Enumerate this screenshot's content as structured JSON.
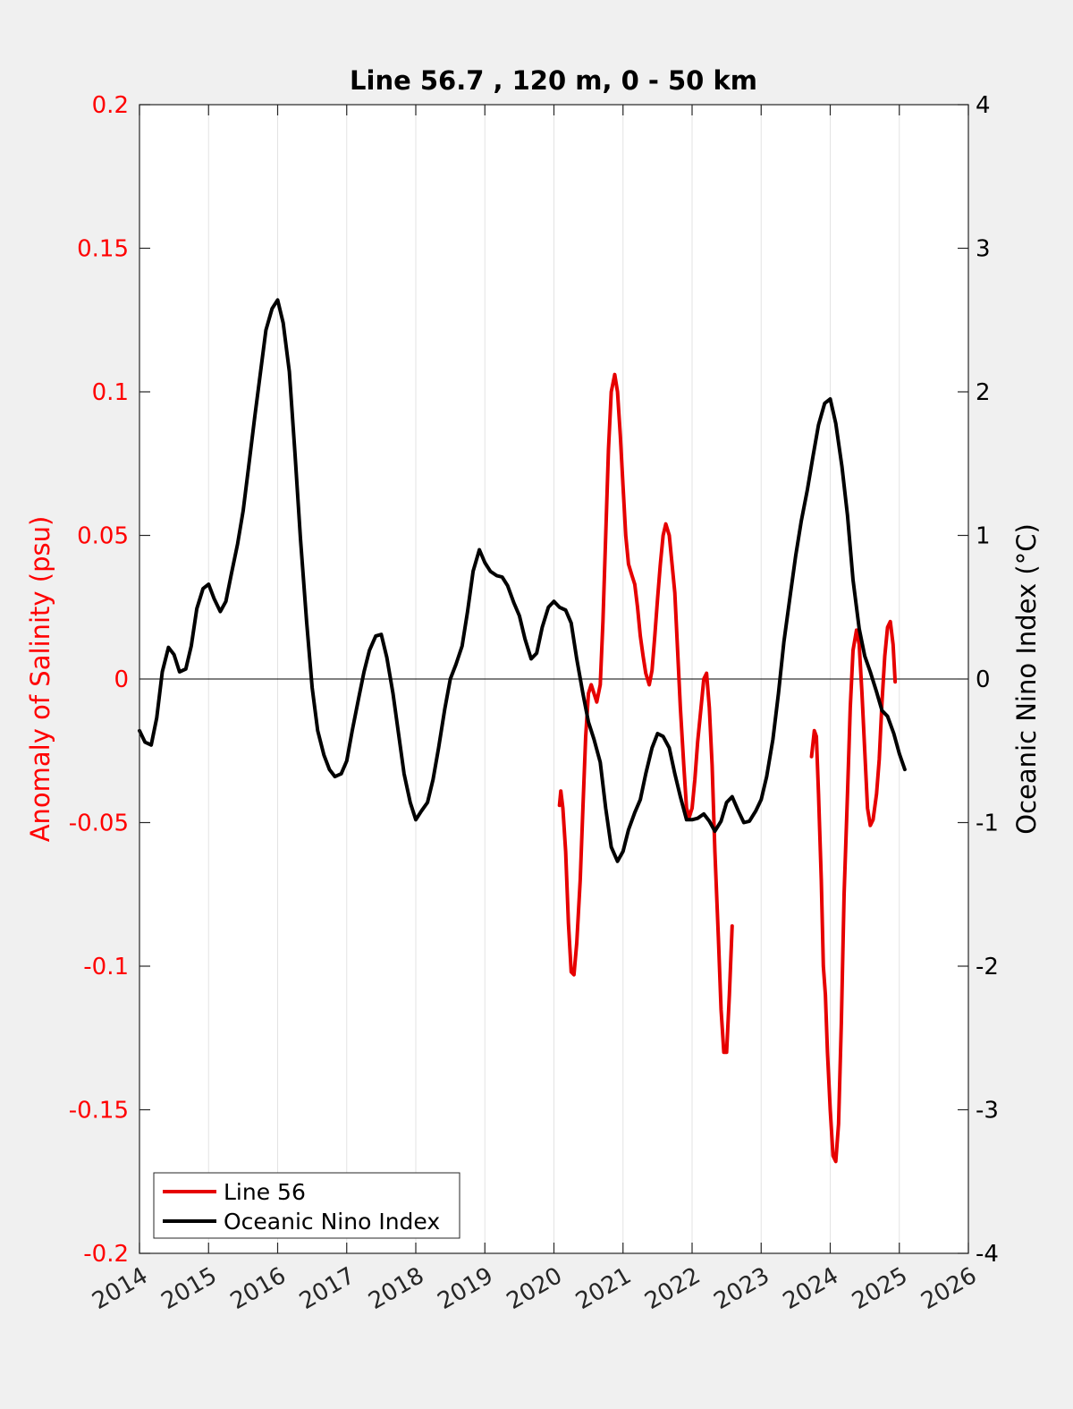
{
  "chart_data": {
    "type": "line",
    "title": "Line 56.7 , 120 m, 0 - 50 km",
    "xlabel": "",
    "ylabel_left": "Anomaly of Salinity (psu)",
    "ylabel_right": "Oceanic Nino Index (°C)",
    "xlim": [
      2014,
      2026
    ],
    "ylim_left": [
      -0.2,
      0.2
    ],
    "ylim_right": [
      -4,
      4
    ],
    "x_ticks": [
      "2014",
      "2015",
      "2016",
      "2017",
      "2018",
      "2019",
      "2020",
      "2021",
      "2022",
      "2023",
      "2024",
      "2025",
      "2026"
    ],
    "y_ticks_left": [
      "0.2",
      "0.15",
      "0.1",
      "0.05",
      "0",
      "-0.05",
      "-0.1",
      "-0.15",
      "-0.2"
    ],
    "y_ticks_right": [
      "4",
      "3",
      "2",
      "1",
      "0",
      "-1",
      "-2",
      "-3",
      "-4"
    ],
    "grid": "vertical",
    "legend_position": "bottom-left",
    "colors": {
      "left_axis": "#ff0000",
      "right_axis": "#000000",
      "line56": "#e60000",
      "oni": "#000000"
    },
    "series": [
      {
        "name": "Line 56",
        "axis": "left",
        "color": "#e60000",
        "segments": [
          [
            [
              2020.08,
              -0.044
            ],
            [
              2020.1,
              -0.039
            ],
            [
              2020.13,
              -0.045
            ],
            [
              2020.17,
              -0.06
            ],
            [
              2020.21,
              -0.085
            ],
            [
              2020.25,
              -0.102
            ],
            [
              2020.29,
              -0.103
            ],
            [
              2020.33,
              -0.092
            ],
            [
              2020.38,
              -0.07
            ],
            [
              2020.42,
              -0.045
            ],
            [
              2020.46,
              -0.02
            ],
            [
              2020.5,
              -0.005
            ],
            [
              2020.54,
              -0.002
            ],
            [
              2020.58,
              -0.005
            ],
            [
              2020.62,
              -0.008
            ],
            [
              2020.67,
              -0.002
            ],
            [
              2020.71,
              0.02
            ],
            [
              2020.75,
              0.05
            ],
            [
              2020.79,
              0.08
            ],
            [
              2020.83,
              0.1
            ],
            [
              2020.88,
              0.106
            ],
            [
              2020.92,
              0.1
            ],
            [
              2020.96,
              0.085
            ],
            [
              2021.0,
              0.067
            ],
            [
              2021.04,
              0.05
            ],
            [
              2021.08,
              0.04
            ],
            [
              2021.13,
              0.036
            ],
            [
              2021.17,
              0.033
            ],
            [
              2021.21,
              0.025
            ],
            [
              2021.25,
              0.015
            ],
            [
              2021.29,
              0.008
            ],
            [
              2021.33,
              0.002
            ],
            [
              2021.38,
              -0.002
            ],
            [
              2021.42,
              0.003
            ],
            [
              2021.46,
              0.015
            ],
            [
              2021.5,
              0.028
            ],
            [
              2021.54,
              0.04
            ],
            [
              2021.58,
              0.05
            ],
            [
              2021.62,
              0.054
            ],
            [
              2021.67,
              0.05
            ],
            [
              2021.71,
              0.04
            ],
            [
              2021.75,
              0.03
            ],
            [
              2021.79,
              0.01
            ],
            [
              2021.83,
              -0.01
            ],
            [
              2021.88,
              -0.03
            ],
            [
              2021.92,
              -0.045
            ],
            [
              2021.96,
              -0.048
            ],
            [
              2022.0,
              -0.045
            ],
            [
              2022.04,
              -0.035
            ],
            [
              2022.08,
              -0.022
            ],
            [
              2022.13,
              -0.01
            ],
            [
              2022.17,
              0.0
            ],
            [
              2022.21,
              0.002
            ],
            [
              2022.25,
              -0.01
            ],
            [
              2022.29,
              -0.03
            ],
            [
              2022.33,
              -0.06
            ],
            [
              2022.38,
              -0.09
            ],
            [
              2022.42,
              -0.115
            ],
            [
              2022.46,
              -0.13
            ],
            [
              2022.5,
              -0.13
            ],
            [
              2022.54,
              -0.11
            ],
            [
              2022.58,
              -0.086
            ]
          ],
          [
            [
              2023.73,
              -0.027
            ],
            [
              2023.77,
              -0.018
            ],
            [
              2023.8,
              -0.02
            ],
            [
              2023.83,
              -0.04
            ],
            [
              2023.87,
              -0.07
            ],
            [
              2023.9,
              -0.1
            ],
            [
              2023.93,
              -0.11
            ],
            [
              2023.96,
              -0.13
            ],
            [
              2024.0,
              -0.15
            ],
            [
              2024.04,
              -0.166
            ],
            [
              2024.08,
              -0.168
            ],
            [
              2024.12,
              -0.155
            ],
            [
              2024.16,
              -0.12
            ],
            [
              2024.2,
              -0.075
            ],
            [
              2024.25,
              -0.04
            ],
            [
              2024.29,
              -0.01
            ],
            [
              2024.33,
              0.01
            ],
            [
              2024.38,
              0.017
            ],
            [
              2024.42,
              0.012
            ],
            [
              2024.46,
              -0.005
            ],
            [
              2024.5,
              -0.025
            ],
            [
              2024.54,
              -0.045
            ],
            [
              2024.58,
              -0.051
            ],
            [
              2024.62,
              -0.049
            ],
            [
              2024.67,
              -0.04
            ],
            [
              2024.71,
              -0.028
            ],
            [
              2024.75,
              -0.008
            ],
            [
              2024.79,
              0.008
            ],
            [
              2024.83,
              0.018
            ],
            [
              2024.87,
              0.02
            ],
            [
              2024.91,
              0.012
            ],
            [
              2024.94,
              -0.001
            ]
          ]
        ]
      },
      {
        "name": "Oceanic Nino Index",
        "axis": "right",
        "color": "#000000",
        "points": [
          [
            2014.0,
            -0.36
          ],
          [
            2014.08,
            -0.44
          ],
          [
            2014.17,
            -0.46
          ],
          [
            2014.25,
            -0.27
          ],
          [
            2014.33,
            0.05
          ],
          [
            2014.42,
            0.22
          ],
          [
            2014.5,
            0.17
          ],
          [
            2014.58,
            0.05
          ],
          [
            2014.67,
            0.07
          ],
          [
            2014.75,
            0.23
          ],
          [
            2014.83,
            0.49
          ],
          [
            2014.92,
            0.63
          ],
          [
            2015.0,
            0.66
          ],
          [
            2015.08,
            0.56
          ],
          [
            2015.17,
            0.47
          ],
          [
            2015.25,
            0.54
          ],
          [
            2015.33,
            0.73
          ],
          [
            2015.42,
            0.94
          ],
          [
            2015.5,
            1.17
          ],
          [
            2015.58,
            1.48
          ],
          [
            2015.67,
            1.83
          ],
          [
            2015.75,
            2.13
          ],
          [
            2015.83,
            2.43
          ],
          [
            2015.92,
            2.58
          ],
          [
            2016.0,
            2.64
          ],
          [
            2016.08,
            2.48
          ],
          [
            2016.17,
            2.14
          ],
          [
            2016.25,
            1.58
          ],
          [
            2016.33,
            0.98
          ],
          [
            2016.42,
            0.4
          ],
          [
            2016.5,
            -0.06
          ],
          [
            2016.58,
            -0.36
          ],
          [
            2016.67,
            -0.53
          ],
          [
            2016.75,
            -0.63
          ],
          [
            2016.83,
            -0.68
          ],
          [
            2016.92,
            -0.66
          ],
          [
            2017.0,
            -0.57
          ],
          [
            2017.08,
            -0.36
          ],
          [
            2017.17,
            -0.14
          ],
          [
            2017.25,
            0.05
          ],
          [
            2017.33,
            0.2
          ],
          [
            2017.42,
            0.3
          ],
          [
            2017.5,
            0.31
          ],
          [
            2017.58,
            0.15
          ],
          [
            2017.67,
            -0.1
          ],
          [
            2017.75,
            -0.38
          ],
          [
            2017.83,
            -0.66
          ],
          [
            2017.92,
            -0.86
          ],
          [
            2018.0,
            -0.98
          ],
          [
            2018.08,
            -0.92
          ],
          [
            2018.17,
            -0.86
          ],
          [
            2018.25,
            -0.7
          ],
          [
            2018.33,
            -0.48
          ],
          [
            2018.42,
            -0.21
          ],
          [
            2018.5,
            0.0
          ],
          [
            2018.58,
            0.1
          ],
          [
            2018.67,
            0.23
          ],
          [
            2018.75,
            0.47
          ],
          [
            2018.83,
            0.75
          ],
          [
            2018.92,
            0.9
          ],
          [
            2019.0,
            0.81
          ],
          [
            2019.08,
            0.75
          ],
          [
            2019.17,
            0.72
          ],
          [
            2019.25,
            0.71
          ],
          [
            2019.33,
            0.65
          ],
          [
            2019.42,
            0.53
          ],
          [
            2019.5,
            0.44
          ],
          [
            2019.58,
            0.28
          ],
          [
            2019.67,
            0.14
          ],
          [
            2019.75,
            0.18
          ],
          [
            2019.83,
            0.36
          ],
          [
            2019.92,
            0.5
          ],
          [
            2020.0,
            0.54
          ],
          [
            2020.08,
            0.5
          ],
          [
            2020.17,
            0.48
          ],
          [
            2020.25,
            0.39
          ],
          [
            2020.33,
            0.14
          ],
          [
            2020.42,
            -0.1
          ],
          [
            2020.5,
            -0.3
          ],
          [
            2020.58,
            -0.42
          ],
          [
            2020.67,
            -0.58
          ],
          [
            2020.75,
            -0.9
          ],
          [
            2020.83,
            -1.17
          ],
          [
            2020.92,
            -1.27
          ],
          [
            2021.0,
            -1.2
          ],
          [
            2021.08,
            -1.05
          ],
          [
            2021.17,
            -0.93
          ],
          [
            2021.25,
            -0.84
          ],
          [
            2021.33,
            -0.66
          ],
          [
            2021.42,
            -0.48
          ],
          [
            2021.5,
            -0.38
          ],
          [
            2021.58,
            -0.4
          ],
          [
            2021.67,
            -0.48
          ],
          [
            2021.75,
            -0.66
          ],
          [
            2021.83,
            -0.82
          ],
          [
            2021.92,
            -0.98
          ],
          [
            2022.0,
            -0.98
          ],
          [
            2022.08,
            -0.97
          ],
          [
            2022.17,
            -0.94
          ],
          [
            2022.25,
            -0.99
          ],
          [
            2022.33,
            -1.06
          ],
          [
            2022.42,
            -0.99
          ],
          [
            2022.5,
            -0.86
          ],
          [
            2022.58,
            -0.82
          ],
          [
            2022.67,
            -0.92
          ],
          [
            2022.75,
            -1.0
          ],
          [
            2022.83,
            -0.99
          ],
          [
            2022.92,
            -0.92
          ],
          [
            2023.0,
            -0.84
          ],
          [
            2023.08,
            -0.68
          ],
          [
            2023.17,
            -0.42
          ],
          [
            2023.25,
            -0.1
          ],
          [
            2023.33,
            0.26
          ],
          [
            2023.42,
            0.58
          ],
          [
            2023.5,
            0.86
          ],
          [
            2023.58,
            1.1
          ],
          [
            2023.67,
            1.32
          ],
          [
            2023.75,
            1.55
          ],
          [
            2023.83,
            1.77
          ],
          [
            2023.92,
            1.92
          ],
          [
            2024.0,
            1.95
          ],
          [
            2024.08,
            1.78
          ],
          [
            2024.17,
            1.48
          ],
          [
            2024.25,
            1.14
          ],
          [
            2024.33,
            0.69
          ],
          [
            2024.42,
            0.35
          ],
          [
            2024.5,
            0.16
          ],
          [
            2024.58,
            0.05
          ],
          [
            2024.67,
            -0.09
          ],
          [
            2024.75,
            -0.22
          ],
          [
            2024.83,
            -0.26
          ],
          [
            2024.92,
            -0.38
          ],
          [
            2025.0,
            -0.52
          ],
          [
            2025.08,
            -0.63
          ]
        ]
      }
    ]
  }
}
